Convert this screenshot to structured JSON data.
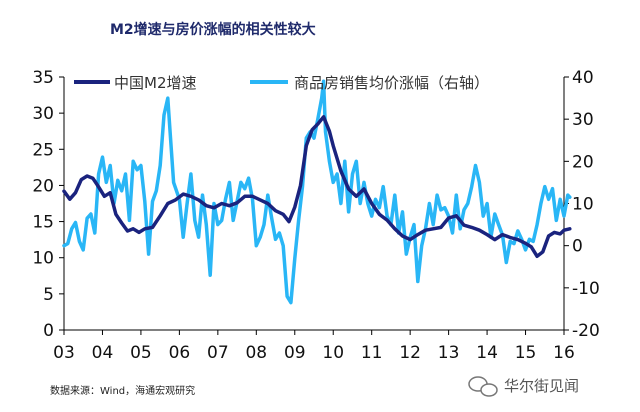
{
  "chart_data": {
    "type": "line",
    "title": "M2增速与房价涨幅的相关性较大",
    "source": "数据来源：Wind，海通宏观研究",
    "watermark": "华尔街见闻",
    "x_ticks": [
      "03",
      "04",
      "05",
      "06",
      "07",
      "08",
      "09",
      "10",
      "11",
      "12",
      "13",
      "14",
      "15",
      "16"
    ],
    "xlim": [
      2003,
      2016
    ],
    "left_axis": {
      "ylim": [
        0,
        35
      ],
      "ticks": [
        "0",
        "5",
        "10",
        "15",
        "20",
        "25",
        "30",
        "35"
      ]
    },
    "right_axis": {
      "ylim": [
        -20,
        40
      ],
      "ticks": [
        "-20",
        "-10",
        "0",
        "10",
        "20",
        "30",
        "40"
      ]
    },
    "colors": {
      "m2": "#1a237e",
      "house": "#29b6f6",
      "axis": "#000000"
    },
    "series": [
      {
        "name": "中国M2增速",
        "axis": "left",
        "values": [
          [
            2003.0,
            19.2
          ],
          [
            2003.15,
            18.1
          ],
          [
            2003.3,
            19.0
          ],
          [
            2003.45,
            20.8
          ],
          [
            2003.6,
            21.3
          ],
          [
            2003.75,
            21.0
          ],
          [
            2003.9,
            19.8
          ],
          [
            2004.05,
            18.5
          ],
          [
            2004.2,
            19.0
          ],
          [
            2004.35,
            16.0
          ],
          [
            2004.5,
            14.8
          ],
          [
            2004.65,
            13.7
          ],
          [
            2004.8,
            14.0
          ],
          [
            2004.95,
            13.5
          ],
          [
            2005.1,
            14.0
          ],
          [
            2005.3,
            14.2
          ],
          [
            2005.5,
            15.8
          ],
          [
            2005.7,
            17.5
          ],
          [
            2005.9,
            18.0
          ],
          [
            2006.1,
            18.8
          ],
          [
            2006.3,
            18.5
          ],
          [
            2006.5,
            18.0
          ],
          [
            2006.7,
            17.2
          ],
          [
            2006.9,
            16.9
          ],
          [
            2007.1,
            17.5
          ],
          [
            2007.3,
            17.2
          ],
          [
            2007.5,
            17.6
          ],
          [
            2007.7,
            18.5
          ],
          [
            2007.9,
            18.5
          ],
          [
            2008.1,
            18.0
          ],
          [
            2008.3,
            17.5
          ],
          [
            2008.5,
            16.5
          ],
          [
            2008.7,
            16.0
          ],
          [
            2008.85,
            15.0
          ],
          [
            2009.0,
            17.0
          ],
          [
            2009.15,
            20.0
          ],
          [
            2009.3,
            25.5
          ],
          [
            2009.45,
            27.7
          ],
          [
            2009.6,
            28.5
          ],
          [
            2009.75,
            29.5
          ],
          [
            2009.9,
            27.5
          ],
          [
            2010.0,
            25.5
          ],
          [
            2010.2,
            22.0
          ],
          [
            2010.4,
            19.5
          ],
          [
            2010.6,
            18.5
          ],
          [
            2010.8,
            19.5
          ],
          [
            2011.0,
            17.5
          ],
          [
            2011.2,
            16.0
          ],
          [
            2011.4,
            15.2
          ],
          [
            2011.6,
            14.0
          ],
          [
            2011.8,
            13.0
          ],
          [
            2012.0,
            12.5
          ],
          [
            2012.2,
            13.2
          ],
          [
            2012.4,
            13.8
          ],
          [
            2012.6,
            14.0
          ],
          [
            2012.8,
            14.2
          ],
          [
            2013.0,
            15.5
          ],
          [
            2013.2,
            15.8
          ],
          [
            2013.4,
            14.5
          ],
          [
            2013.6,
            14.2
          ],
          [
            2013.8,
            13.8
          ],
          [
            2014.0,
            13.2
          ],
          [
            2014.2,
            12.5
          ],
          [
            2014.4,
            13.2
          ],
          [
            2014.6,
            12.8
          ],
          [
            2014.8,
            12.5
          ],
          [
            2015.0,
            12.0
          ],
          [
            2015.15,
            11.5
          ],
          [
            2015.3,
            10.2
          ],
          [
            2015.45,
            10.8
          ],
          [
            2015.6,
            13.0
          ],
          [
            2015.75,
            13.5
          ],
          [
            2015.9,
            13.3
          ],
          [
            2016.0,
            13.8
          ],
          [
            2016.15,
            14.0
          ]
        ]
      },
      {
        "name": "商品房销售均价涨幅（右轴）",
        "axis": "right",
        "values": [
          [
            2003.0,
            0.0
          ],
          [
            2003.1,
            0.5
          ],
          [
            2003.2,
            4.0
          ],
          [
            2003.3,
            5.5
          ],
          [
            2003.4,
            1.0
          ],
          [
            2003.5,
            -1.0
          ],
          [
            2003.6,
            6.5
          ],
          [
            2003.7,
            7.5
          ],
          [
            2003.8,
            3.0
          ],
          [
            2003.9,
            17.0
          ],
          [
            2004.0,
            21.0
          ],
          [
            2004.1,
            15.0
          ],
          [
            2004.2,
            19.0
          ],
          [
            2004.3,
            10.0
          ],
          [
            2004.4,
            15.5
          ],
          [
            2004.5,
            13.0
          ],
          [
            2004.6,
            17.0
          ],
          [
            2004.7,
            6.0
          ],
          [
            2004.8,
            20.0
          ],
          [
            2004.9,
            18.0
          ],
          [
            2005.0,
            19.0
          ],
          [
            2005.1,
            10.5
          ],
          [
            2005.2,
            -2.0
          ],
          [
            2005.3,
            10.5
          ],
          [
            2005.4,
            13.0
          ],
          [
            2005.5,
            19.0
          ],
          [
            2005.6,
            31.0
          ],
          [
            2005.7,
            35.0
          ],
          [
            2005.75,
            28.0
          ],
          [
            2005.85,
            15.0
          ],
          [
            2006.0,
            11.0
          ],
          [
            2006.1,
            2.0
          ],
          [
            2006.2,
            10.0
          ],
          [
            2006.3,
            17.0
          ],
          [
            2006.4,
            6.0
          ],
          [
            2006.5,
            2.0
          ],
          [
            2006.6,
            12.0
          ],
          [
            2006.7,
            5.0
          ],
          [
            2006.8,
            -7.0
          ],
          [
            2006.9,
            10.0
          ],
          [
            2007.0,
            5.0
          ],
          [
            2007.1,
            6.0
          ],
          [
            2007.2,
            11.0
          ],
          [
            2007.3,
            15.0
          ],
          [
            2007.4,
            6.0
          ],
          [
            2007.5,
            10.5
          ],
          [
            2007.6,
            15.0
          ],
          [
            2007.7,
            13.5
          ],
          [
            2007.8,
            16.0
          ],
          [
            2007.9,
            11.0
          ],
          [
            2008.0,
            0.0
          ],
          [
            2008.1,
            2.0
          ],
          [
            2008.2,
            5.0
          ],
          [
            2008.3,
            12.0
          ],
          [
            2008.4,
            6.5
          ],
          [
            2008.5,
            1.5
          ],
          [
            2008.6,
            3.0
          ],
          [
            2008.7,
            0.0
          ],
          [
            2008.8,
            -12.0
          ],
          [
            2008.9,
            -13.5
          ],
          [
            2009.0,
            -3.0
          ],
          [
            2009.1,
            6.0
          ],
          [
            2009.2,
            14.0
          ],
          [
            2009.3,
            25.5
          ],
          [
            2009.4,
            27.0
          ],
          [
            2009.5,
            25.5
          ],
          [
            2009.6,
            30.0
          ],
          [
            2009.7,
            35.0
          ],
          [
            2009.75,
            39.0
          ],
          [
            2009.8,
            27.0
          ],
          [
            2009.9,
            20.0
          ],
          [
            2010.0,
            15.0
          ],
          [
            2010.1,
            17.0
          ],
          [
            2010.2,
            10.0
          ],
          [
            2010.3,
            20.0
          ],
          [
            2010.4,
            8.0
          ],
          [
            2010.5,
            17.0
          ],
          [
            2010.6,
            20.0
          ],
          [
            2010.7,
            10.0
          ],
          [
            2010.8,
            15.0
          ],
          [
            2010.9,
            10.0
          ],
          [
            2011.0,
            7.0
          ],
          [
            2011.1,
            11.0
          ],
          [
            2011.2,
            9.0
          ],
          [
            2011.3,
            14.0
          ],
          [
            2011.4,
            7.0
          ],
          [
            2011.5,
            5.0
          ],
          [
            2011.6,
            12.0
          ],
          [
            2011.7,
            3.0
          ],
          [
            2011.8,
            8.0
          ],
          [
            2011.9,
            -2.0
          ],
          [
            2012.0,
            2.0
          ],
          [
            2012.1,
            5.0
          ],
          [
            2012.2,
            -8.5
          ],
          [
            2012.3,
            0.0
          ],
          [
            2012.4,
            4.0
          ],
          [
            2012.5,
            10.0
          ],
          [
            2012.6,
            5.0
          ],
          [
            2012.7,
            12.0
          ],
          [
            2012.8,
            8.5
          ],
          [
            2012.9,
            9.0
          ],
          [
            2013.0,
            7.0
          ],
          [
            2013.1,
            3.0
          ],
          [
            2013.2,
            12.0
          ],
          [
            2013.3,
            4.0
          ],
          [
            2013.4,
            8.5
          ],
          [
            2013.5,
            10.0
          ],
          [
            2013.6,
            14.0
          ],
          [
            2013.7,
            19.0
          ],
          [
            2013.8,
            15.0
          ],
          [
            2013.9,
            7.0
          ],
          [
            2014.0,
            10.0
          ],
          [
            2014.1,
            2.0
          ],
          [
            2014.2,
            7.5
          ],
          [
            2014.3,
            5.0
          ],
          [
            2014.4,
            2.5
          ],
          [
            2014.5,
            -4.0
          ],
          [
            2014.6,
            1.0
          ],
          [
            2014.7,
            0.5
          ],
          [
            2014.8,
            3.5
          ],
          [
            2014.9,
            1.5
          ],
          [
            2015.0,
            -1.0
          ],
          [
            2015.1,
            1.5
          ],
          [
            2015.2,
            1.0
          ],
          [
            2015.3,
            5.0
          ],
          [
            2015.4,
            10.0
          ],
          [
            2015.5,
            14.0
          ],
          [
            2015.6,
            11.0
          ],
          [
            2015.7,
            13.5
          ],
          [
            2015.8,
            6.0
          ],
          [
            2015.9,
            11.0
          ],
          [
            2016.0,
            7.0
          ],
          [
            2016.1,
            12.0
          ],
          [
            2016.15,
            11.5
          ]
        ]
      }
    ]
  }
}
